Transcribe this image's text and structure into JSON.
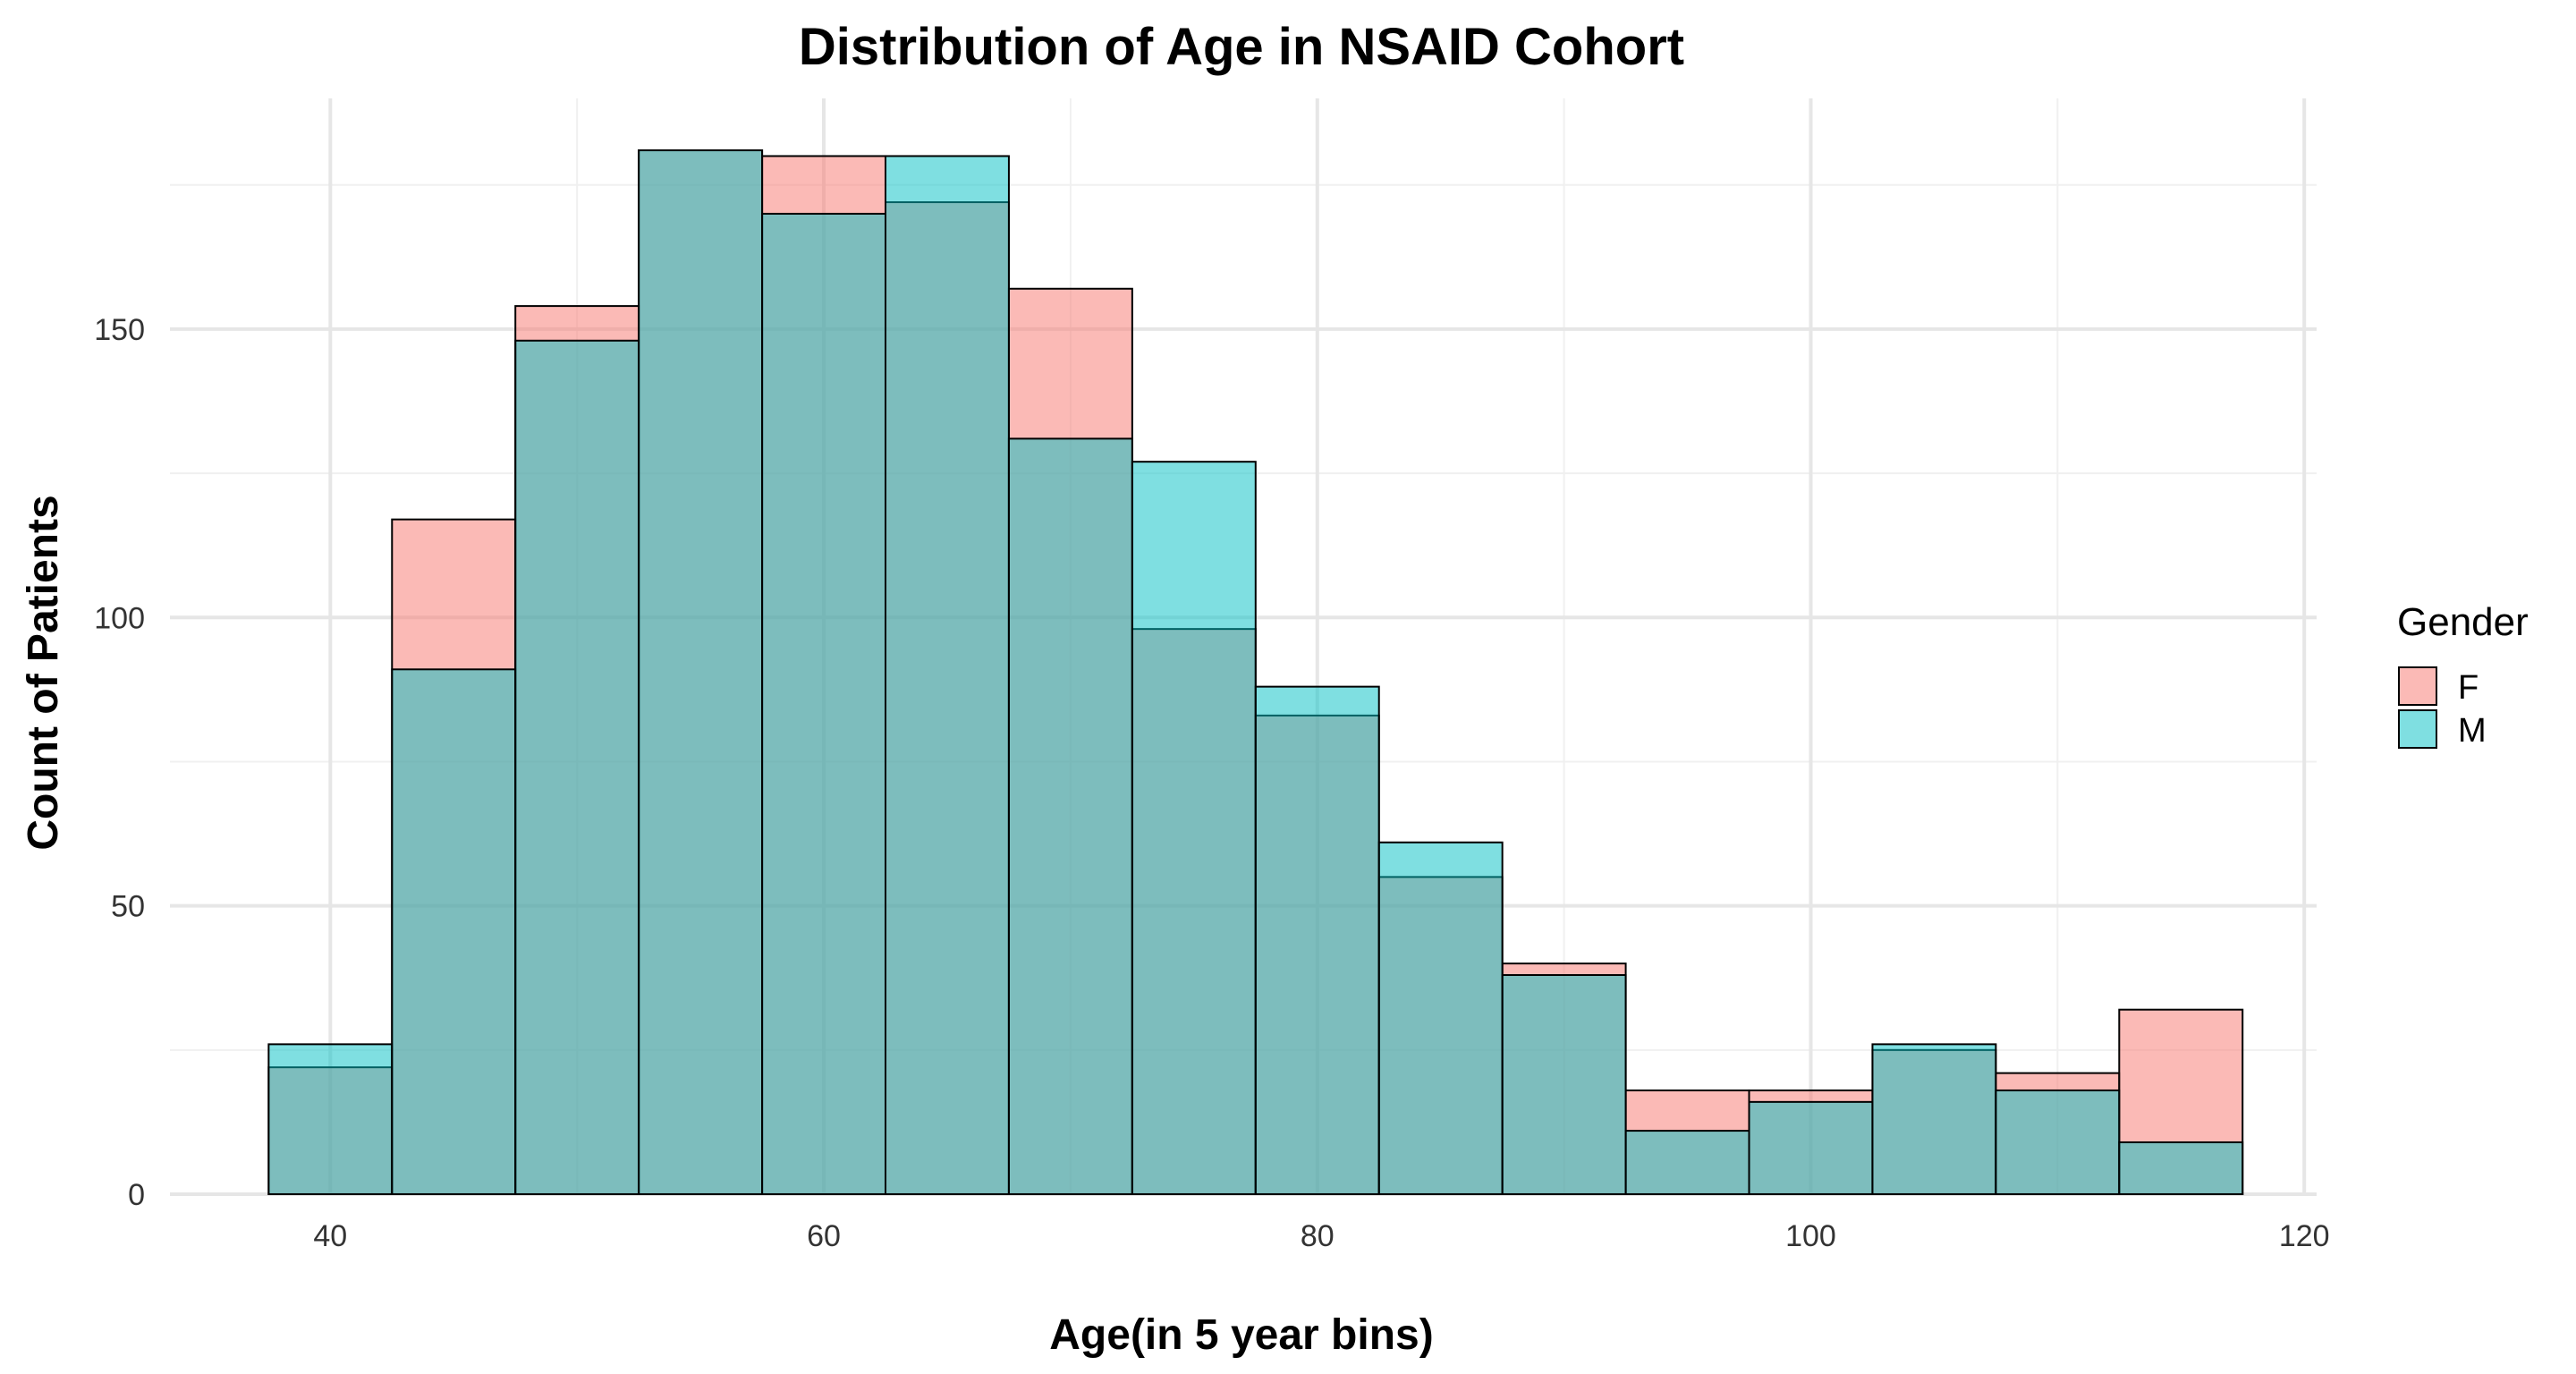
{
  "chart_data": {
    "type": "bar",
    "title": "Distribution of Age in NSAID Cohort",
    "xlabel": "Age(in 5 year bins)",
    "ylabel": "Count of Patients",
    "bin_width": 5,
    "bin_centers": [
      40,
      45,
      50,
      55,
      60,
      65,
      70,
      75,
      80,
      85,
      90,
      95,
      100,
      105,
      110,
      115
    ],
    "xlim": [
      33.5,
      120.5
    ],
    "ylim": [
      0,
      190
    ],
    "x_ticks": [
      40,
      60,
      80,
      100,
      120
    ],
    "y_ticks": [
      0,
      50,
      100,
      150
    ],
    "grid": true,
    "legend": {
      "title": "Gender",
      "position": "right"
    },
    "series": [
      {
        "name": "F",
        "color": "#F8766D",
        "values": [
          22,
          117,
          154,
          181,
          180,
          172,
          157,
          98,
          83,
          55,
          40,
          18,
          18,
          25,
          21,
          32
        ]
      },
      {
        "name": "M",
        "color": "#00BFC4",
        "values": [
          26,
          91,
          148,
          181,
          170,
          180,
          131,
          127,
          88,
          61,
          38,
          11,
          16,
          26,
          18,
          9
        ]
      }
    ]
  }
}
